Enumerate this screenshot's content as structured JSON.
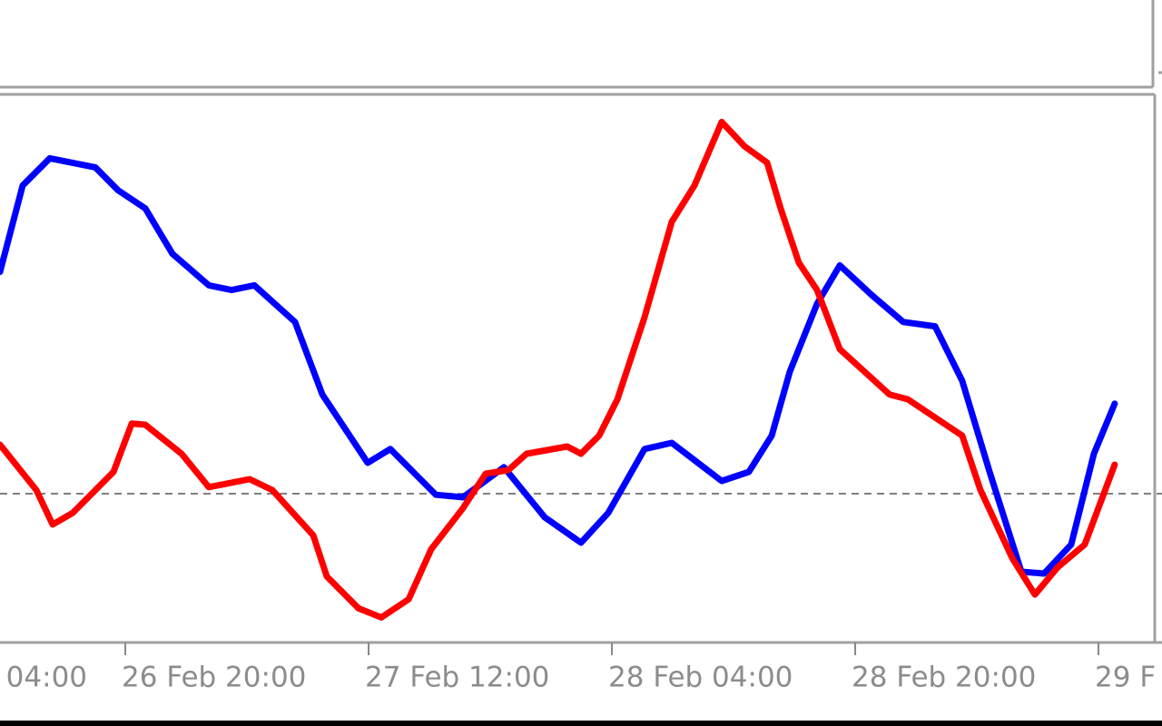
{
  "chart_data": {
    "type": "line",
    "xlim": [
      7.76,
      83.7
    ],
    "ylim": [
      -41,
      110
    ],
    "xticks": [
      {
        "value": 0,
        "label": "04:00"
      },
      {
        "value": 16,
        "label": "26 Feb 20:00"
      },
      {
        "value": 32,
        "label": "27 Feb 12:00"
      },
      {
        "value": 48,
        "label": "28 Feb 04:00"
      },
      {
        "value": 64,
        "label": "28 Feb 20:00"
      },
      {
        "value": 80,
        "label": "29 F"
      }
    ],
    "level": 0,
    "series": [
      {
        "color": "#0000ff",
        "x": [
          7.76,
          9.25,
          11.04,
          14.03,
          15.52,
          17.31,
          19.1,
          21.49,
          22.99,
          24.48,
          27.16,
          28.96,
          31.94,
          33.43,
          36.42,
          38.21,
          40.9,
          43.58,
          45.97,
          47.76,
          50.15,
          51.94,
          55.22,
          57.01,
          58.51,
          59.7,
          61.49,
          62.99,
          65.07,
          67.16,
          69.25,
          71.04,
          72.84,
          74.93,
          76.42,
          78.21,
          79.7,
          81.07
        ],
        "values": [
          61.1,
          84.9,
          92.4,
          89.9,
          83.6,
          78.6,
          66.1,
          57.4,
          56.1,
          57.4,
          47.3,
          27.3,
          8.5,
          12.3,
          -0.3,
          -1.0,
          7.3,
          -6.5,
          -13.5,
          -5.3,
          12.3,
          14.0,
          3.5,
          6.0,
          16.0,
          33.6,
          52.3,
          62.9,
          54.8,
          47.3,
          46.1,
          31.1,
          6.0,
          -21.5,
          -22.0,
          -14.0,
          11.0,
          24.8
        ]
      },
      {
        "color": "#ff0000",
        "x": [
          7.76,
          10.15,
          11.22,
          12.54,
          15.22,
          16.42,
          17.31,
          19.7,
          21.49,
          24.18,
          25.67,
          28.36,
          29.25,
          31.34,
          32.84,
          34.63,
          36.12,
          38.21,
          39.7,
          41.19,
          42.39,
          45.07,
          45.97,
          47.16,
          48.36,
          50.15,
          51.94,
          53.43,
          55.22,
          56.72,
          58.21,
          59.1,
          60.3,
          61.49,
          62.99,
          64.48,
          66.27,
          67.46,
          71.04,
          72.24,
          74.33,
          75.82,
          77.31,
          79.1,
          81.07
        ],
        "values": [
          13.5,
          1.0,
          -8.5,
          -5.3,
          6.0,
          19.3,
          19.0,
          11.0,
          1.8,
          4.0,
          1.0,
          -11.5,
          -22.8,
          -31.6,
          -34.1,
          -29.1,
          -15.3,
          -4.0,
          5.5,
          6.5,
          11.0,
          13.0,
          11.0,
          16.0,
          26.0,
          48.6,
          74.9,
          84.9,
          102.4,
          95.7,
          91.2,
          78.6,
          63.6,
          56.1,
          39.8,
          34.1,
          27.3,
          26.0,
          16.0,
          1.0,
          -17.8,
          -27.8,
          -20.3,
          -14.0,
          8.0
        ]
      }
    ]
  }
}
